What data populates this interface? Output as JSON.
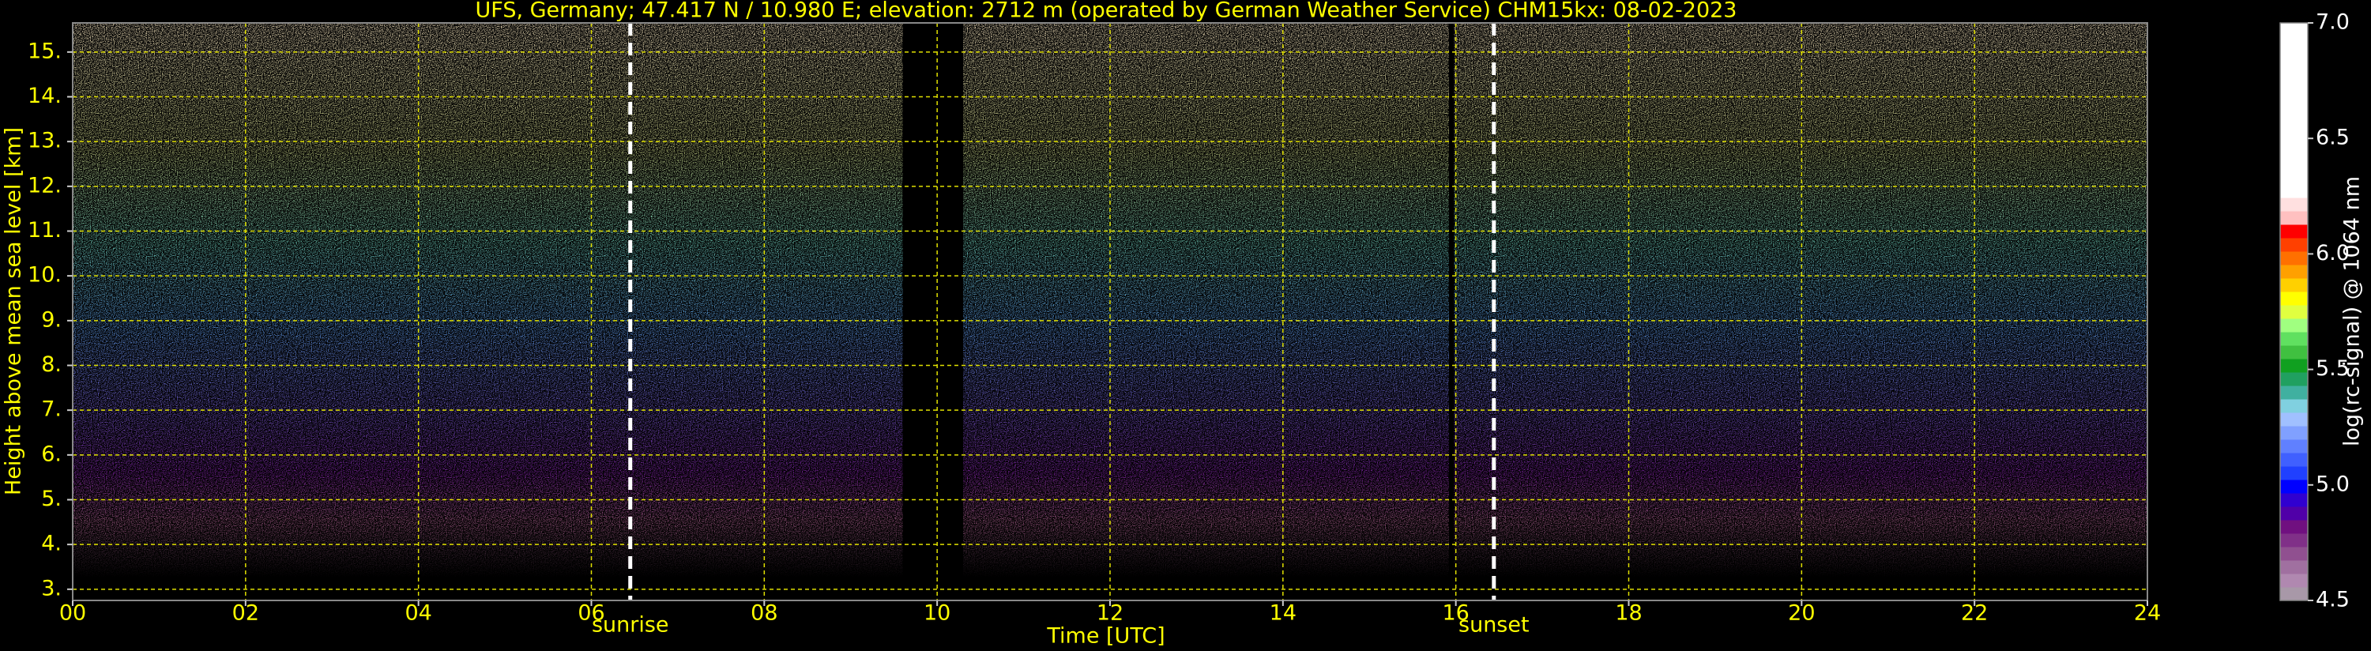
{
  "chart_data": {
    "type": "heatmap",
    "title": "UFS, Germany; 47.417 N / 10.980 E; elevation: 2712 m  (operated by German Weather Service)     CHM15kx: 08-02-2023",
    "xlabel": "Time [UTC]",
    "ylabel": "Height above mean sea level [km]",
    "xlim": [
      0,
      24
    ],
    "ylim": [
      2.75,
      15.65
    ],
    "xticks": [
      {
        "value": 0,
        "label": "00"
      },
      {
        "value": 2,
        "label": "02"
      },
      {
        "value": 4,
        "label": "04"
      },
      {
        "value": 6,
        "label": "06"
      },
      {
        "value": 8,
        "label": "08"
      },
      {
        "value": 10,
        "label": "10"
      },
      {
        "value": 12,
        "label": "12"
      },
      {
        "value": 14,
        "label": "14"
      },
      {
        "value": 16,
        "label": "16"
      },
      {
        "value": 18,
        "label": "18"
      },
      {
        "value": 20,
        "label": "20"
      },
      {
        "value": 22,
        "label": "22"
      },
      {
        "value": 24,
        "label": "24"
      }
    ],
    "yticks": [
      {
        "value": 3,
        "label": "3."
      },
      {
        "value": 4,
        "label": "4."
      },
      {
        "value": 5,
        "label": "5."
      },
      {
        "value": 6,
        "label": "6."
      },
      {
        "value": 7,
        "label": "7."
      },
      {
        "value": 8,
        "label": "8."
      },
      {
        "value": 9,
        "label": "9."
      },
      {
        "value": 10,
        "label": "10."
      },
      {
        "value": 11,
        "label": "11."
      },
      {
        "value": 12,
        "label": "12."
      },
      {
        "value": 13,
        "label": "13."
      },
      {
        "value": 14,
        "label": "14."
      },
      {
        "value": 15,
        "label": "15."
      }
    ],
    "grid": true,
    "no_data": [
      [
        9.6,
        10.3
      ],
      [
        15.92,
        15.98
      ]
    ],
    "annotations": [
      {
        "x": 6.45,
        "text": "sunrise"
      },
      {
        "x": 16.44,
        "text": "sunset"
      }
    ],
    "colorbar": {
      "label": "log(rc-signal) @ 1064 nm",
      "lim": [
        4.5,
        7.0
      ],
      "ticks": [
        4.5,
        {
          "value": 5,
          "label": "5.0"
        },
        5.5,
        {
          "value": 6,
          "label": "6.0"
        },
        6.5,
        {
          "value": 7,
          "label": "7.0"
        }
      ],
      "colors": [
        "#a898a8",
        "#b088b0",
        "#a070a0",
        "#905090",
        "#803088",
        "#701080",
        "#5000a8",
        "#3000d0",
        "#0000ff",
        "#2040ff",
        "#4060ff",
        "#6080ff",
        "#80a0ff",
        "#a0c0ff",
        "#80d0e0",
        "#40b0a0",
        "#20a060",
        "#10a020",
        "#40c040",
        "#60e060",
        "#a0ff80",
        "#e0ff40",
        "#ffff00",
        "#ffd000",
        "#ffa000",
        "#ff7000",
        "#ff4000",
        "#ff0000",
        "#ffc0c0",
        "#ffe0e0",
        "#ffffff",
        "#ffffff",
        "#ffffff",
        "#ffffff",
        "#ffffff",
        "#ffffff",
        "#ffffff",
        "#ffffff",
        "#ffffff",
        "#ffffff",
        "#ffffff",
        "#ffffff",
        "#ffffff"
      ]
    }
  }
}
